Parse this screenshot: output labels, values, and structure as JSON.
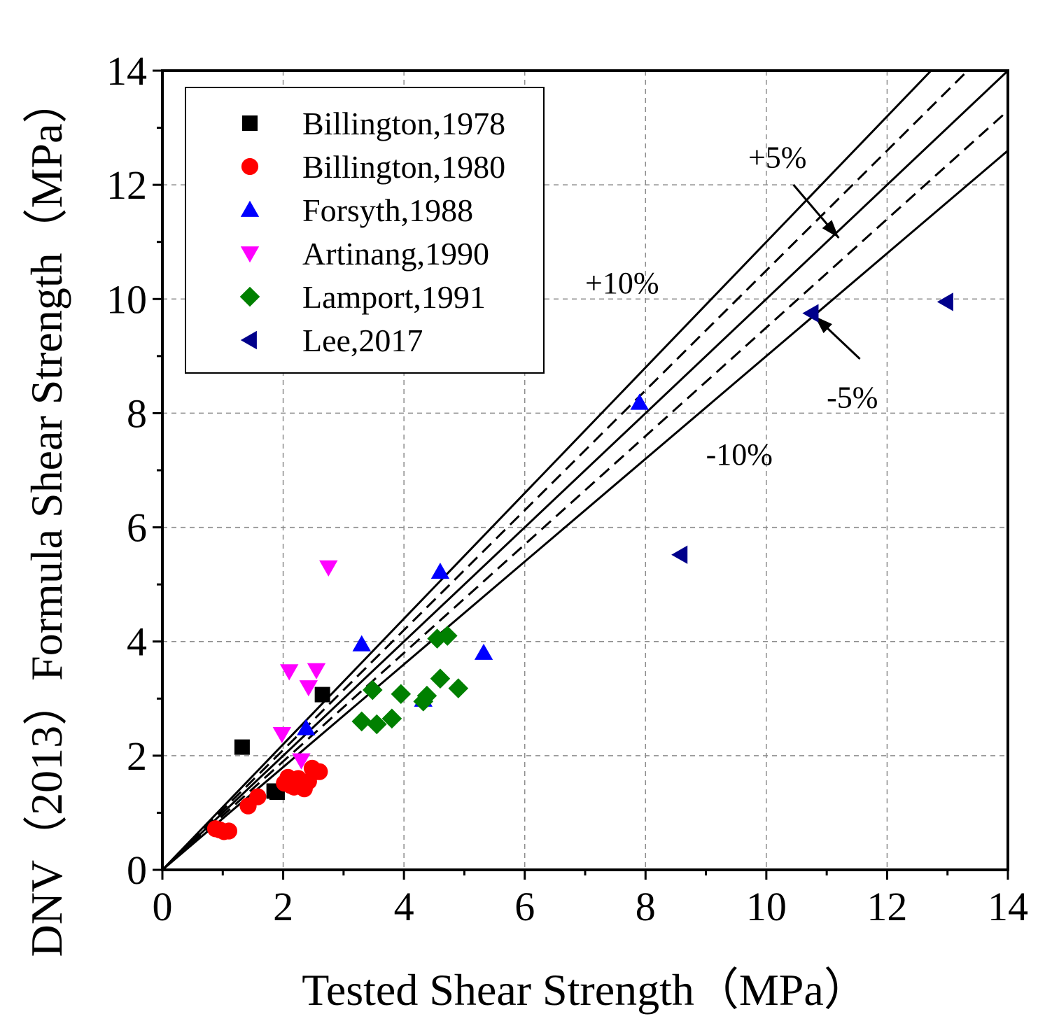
{
  "chart_data": {
    "type": "scatter",
    "title": "",
    "xlabel": "Tested Shear Strength（MPa）",
    "ylabel": "DNV（2013）Formula Shear Strength（MPa）",
    "xlim": [
      0,
      14
    ],
    "ylim": [
      0,
      14
    ],
    "xticks": [
      0,
      2,
      4,
      6,
      8,
      10,
      12,
      14
    ],
    "yticks": [
      0,
      2,
      4,
      6,
      8,
      10,
      12,
      14
    ],
    "xtick_labels": [
      "0",
      "2",
      "4",
      "6",
      "8",
      "10",
      "12",
      "14"
    ],
    "ytick_labels": [
      "0",
      "2",
      "4",
      "6",
      "8",
      "10",
      "12",
      "14"
    ],
    "grid": true,
    "legend_position": "top-left",
    "series": [
      {
        "name": "Billington,1978",
        "marker": "square",
        "color": "#000000",
        "points": [
          [
            1.32,
            2.15
          ],
          [
            1.85,
            1.38
          ],
          [
            1.9,
            1.36
          ],
          [
            2.65,
            3.07
          ]
        ]
      },
      {
        "name": "Billington,1980",
        "marker": "circle",
        "color": "#ff0000",
        "points": [
          [
            0.88,
            0.72
          ],
          [
            0.95,
            0.7
          ],
          [
            1.02,
            0.67
          ],
          [
            1.1,
            0.68
          ],
          [
            1.42,
            1.12
          ],
          [
            1.58,
            1.28
          ],
          [
            2.02,
            1.52
          ],
          [
            2.08,
            1.62
          ],
          [
            2.12,
            1.48
          ],
          [
            2.18,
            1.45
          ],
          [
            2.25,
            1.6
          ],
          [
            2.3,
            1.5
          ],
          [
            2.35,
            1.42
          ],
          [
            2.42,
            1.55
          ],
          [
            2.48,
            1.78
          ],
          [
            2.55,
            1.72
          ],
          [
            2.6,
            1.72
          ]
        ]
      },
      {
        "name": "Forsyth,1988",
        "marker": "triangle-up",
        "color": "#0000ff",
        "points": [
          [
            2.38,
            2.48
          ],
          [
            3.3,
            3.95
          ],
          [
            4.32,
            2.98
          ],
          [
            4.6,
            5.22
          ],
          [
            5.32,
            3.8
          ],
          [
            7.9,
            8.18
          ]
        ]
      },
      {
        "name": "Artinang,1990",
        "marker": "triangle-down",
        "color": "#ff00ff",
        "points": [
          [
            1.98,
            2.38
          ],
          [
            2.1,
            3.48
          ],
          [
            2.3,
            1.92
          ],
          [
            2.42,
            3.2
          ],
          [
            2.55,
            3.5
          ],
          [
            2.75,
            5.3
          ]
        ]
      },
      {
        "name": "Lamport,1991",
        "marker": "diamond",
        "color": "#008000",
        "points": [
          [
            3.3,
            2.6
          ],
          [
            3.48,
            3.15
          ],
          [
            3.55,
            2.55
          ],
          [
            3.8,
            2.65
          ],
          [
            3.95,
            3.08
          ],
          [
            4.32,
            2.95
          ],
          [
            4.38,
            3.05
          ],
          [
            4.55,
            4.05
          ],
          [
            4.6,
            3.35
          ],
          [
            4.72,
            4.1
          ],
          [
            4.9,
            3.18
          ]
        ]
      },
      {
        "name": "Lee,2017",
        "marker": "triangle-left",
        "color": "#00008b",
        "points": [
          [
            8.58,
            5.52
          ],
          [
            10.75,
            9.75
          ],
          [
            12.98,
            9.95
          ]
        ]
      }
    ],
    "reference_lines": [
      {
        "name": "+10%",
        "slope": 1.1,
        "style": "solid"
      },
      {
        "name": "+5%",
        "slope": 1.05,
        "style": "dashed"
      },
      {
        "name": "y=x",
        "slope": 1.0,
        "style": "solid"
      },
      {
        "name": "-5%",
        "slope": 0.95,
        "style": "dashed"
      },
      {
        "name": "-10%",
        "slope": 0.9,
        "style": "solid"
      }
    ],
    "annotations": [
      {
        "text": "+5%",
        "x": 9.7,
        "y": 12.3
      },
      {
        "text": "+10%",
        "x": 7.0,
        "y": 10.1
      },
      {
        "text": "-5%",
        "x": 11.0,
        "y": 8.1
      },
      {
        "text": "-10%",
        "x": 9.0,
        "y": 7.1
      }
    ],
    "arrows": [
      {
        "from": [
          10.45,
          12.0
        ],
        "to": [
          11.2,
          11.07
        ]
      },
      {
        "from": [
          11.55,
          8.95
        ],
        "to": [
          10.8,
          9.7
        ]
      }
    ]
  }
}
